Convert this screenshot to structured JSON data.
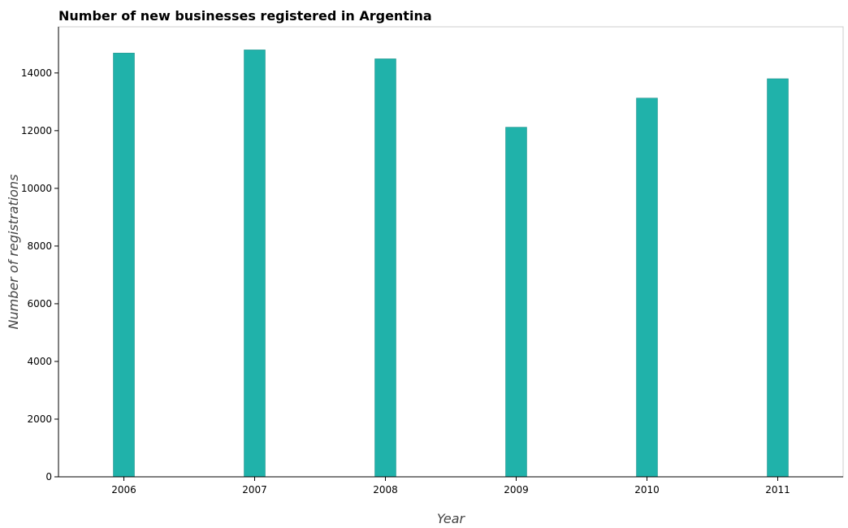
{
  "chart_data": {
    "type": "bar",
    "title": "Number of new businesses registered in Argentina",
    "xlabel": "Year",
    "ylabel": "Number of registrations",
    "categories": [
      "2006",
      "2007",
      "2008",
      "2009",
      "2010",
      "2011"
    ],
    "values": [
      14690,
      14800,
      14490,
      12120,
      13130,
      13800
    ],
    "ylim": [
      0,
      15600
    ],
    "yticks": [
      0,
      2000,
      4000,
      6000,
      8000,
      10000,
      12000,
      14000
    ],
    "ytick_labels": [
      "0",
      "2000",
      "4000",
      "6000",
      "8000",
      "10000",
      "12000",
      "14000"
    ],
    "grid": false,
    "bar_color": "#20b2aa",
    "bar_edge_color": "#1a8a84"
  }
}
